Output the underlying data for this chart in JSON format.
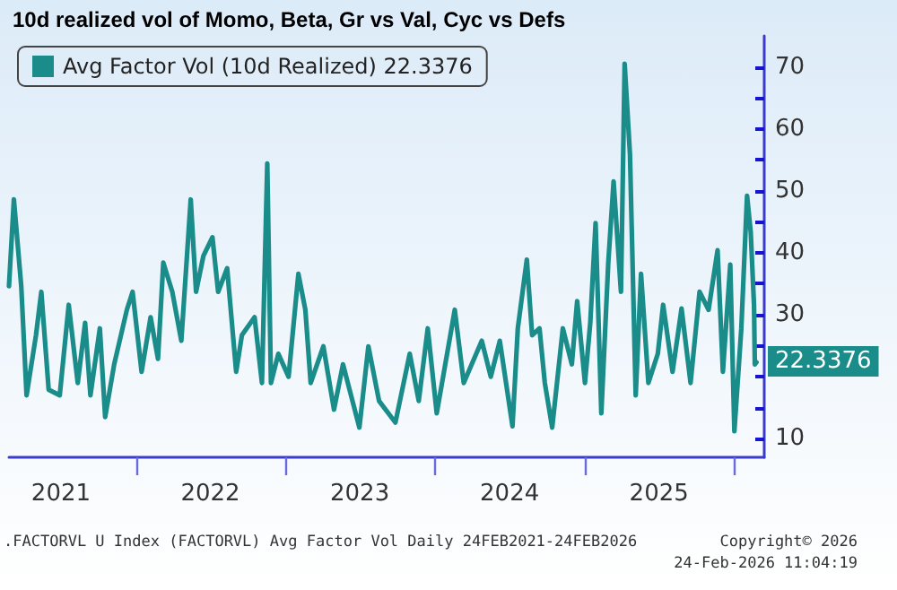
{
  "chart_data": {
    "type": "line",
    "title": "10d realized vol of Momo, Beta, Gr vs Val, Cyc vs Defs",
    "x": [
      "2021-02-24",
      "2021-03-08",
      "2021-03-26",
      "2021-04-08",
      "2021-05-01",
      "2021-05-14",
      "2021-06-01",
      "2021-06-28",
      "2021-07-20",
      "2021-08-11",
      "2021-08-29",
      "2021-09-11",
      "2021-10-04",
      "2021-10-17",
      "2021-11-08",
      "2021-12-09",
      "2021-12-23",
      "2022-01-14",
      "2022-02-05",
      "2022-02-23",
      "2022-03-08",
      "2022-03-30",
      "2022-04-21",
      "2022-05-14",
      "2022-05-27",
      "2022-06-14",
      "2022-07-06",
      "2022-07-20",
      "2022-08-11",
      "2022-09-02",
      "2022-09-16",
      "2022-10-17",
      "2022-11-04",
      "2022-11-17",
      "2022-11-26",
      "2022-12-14",
      "2023-01-08",
      "2023-02-01",
      "2023-02-18",
      "2023-03-03",
      "2023-04-03",
      "2023-04-29",
      "2023-05-21",
      "2023-06-30",
      "2023-07-22",
      "2023-08-17",
      "2023-09-26",
      "2023-10-31",
      "2023-11-22",
      "2023-12-14",
      "2024-01-05",
      "2024-02-18",
      "2024-03-11",
      "2024-04-24",
      "2024-05-16",
      "2024-06-07",
      "2024-07-08",
      "2024-07-21",
      "2024-08-12",
      "2024-08-25",
      "2024-09-12",
      "2024-09-25",
      "2024-10-13",
      "2024-11-08",
      "2024-11-30",
      "2024-12-13",
      "2025-01-01",
      "2025-01-14",
      "2025-01-27",
      "2025-02-10",
      "2025-02-27",
      "2025-03-12",
      "2025-03-30",
      "2025-04-08",
      "2025-04-21",
      "2025-05-05",
      "2025-05-18",
      "2025-06-05",
      "2025-06-28",
      "2025-07-11",
      "2025-08-03",
      "2025-08-25",
      "2025-09-16",
      "2025-10-08",
      "2025-10-30",
      "2025-11-21",
      "2025-12-04",
      "2025-12-22",
      "2026-01-01",
      "2026-01-18",
      "2026-02-01",
      "2026-02-10",
      "2026-02-18",
      "2026-02-20",
      "2026-02-24"
    ],
    "series": [
      {
        "name": "Avg Factor Vol (10d Realized) 22.3376",
        "color": "#1a8c8a",
        "values": [
          34.6,
          48.6,
          34.6,
          17,
          26.7,
          33.7,
          17.9,
          17,
          31.6,
          19,
          28.7,
          17,
          27.8,
          13.5,
          22,
          30.8,
          33.7,
          20.8,
          29.6,
          22.9,
          38.4,
          33.7,
          25.8,
          48.6,
          33.7,
          39.5,
          42.5,
          33.7,
          37.5,
          20.8,
          26.7,
          29.6,
          19,
          54.4,
          19,
          23.7,
          20,
          36.6,
          30.8,
          19,
          24.9,
          14.7,
          22,
          11.8,
          24.9,
          16.1,
          12.6,
          23.7,
          16.1,
          27.8,
          14.1,
          30.8,
          19,
          25.8,
          20,
          25.8,
          12,
          27.8,
          38.9,
          26.7,
          27.8,
          19,
          11.8,
          27.8,
          22,
          32.2,
          19,
          28.7,
          44.8,
          14.1,
          38.4,
          51.5,
          33.7,
          70.5,
          55.9,
          17,
          36.6,
          19,
          23.7,
          31.6,
          20.8,
          31,
          19,
          33.7,
          30.8,
          40.4,
          20.8,
          38.1,
          11.2,
          27.8,
          49.2,
          43.3,
          31.6,
          22,
          22.3376
        ]
      }
    ],
    "xlim": [
      "2021-02-24",
      "2026-03-15"
    ],
    "xticks": [
      {
        "value": "2021-07-01",
        "label": "2021"
      },
      {
        "value": "2022-01-01",
        "label": null
      },
      {
        "value": "2022-07-01",
        "label": "2022"
      },
      {
        "value": "2023-01-01",
        "label": null
      },
      {
        "value": "2023-07-01",
        "label": "2023"
      },
      {
        "value": "2024-01-01",
        "label": null
      },
      {
        "value": "2024-07-01",
        "label": "2024"
      },
      {
        "value": "2025-01-01",
        "label": null
      },
      {
        "value": "2025-07-01",
        "label": "2025"
      },
      {
        "value": "2026-01-01",
        "label": null
      }
    ],
    "ylim": [
      7,
      75
    ],
    "yticks": [
      10,
      {
        "value": 15,
        "label": null
      },
      {
        "value": 20,
        "label": null
      },
      {
        "value": 25,
        "label": null
      },
      30,
      {
        "value": 35,
        "label": null
      },
      40,
      {
        "value": 45,
        "label": null
      },
      50,
      {
        "value": 55,
        "label": null
      },
      60,
      {
        "value": 65,
        "label": null
      },
      70
    ],
    "grid": false,
    "legend": "top left",
    "marker": "none",
    "line_style": "solid",
    "annotations": [
      {
        "text": "22.3376",
        "x": "2026-02-24",
        "y": 22.3376
      },
      ".FACTORVL U Index (FACTORVL) Avg Factor Vol Daily 24FEB2021-24FEB2026",
      "Copyright© 2026",
      "24-Feb-2026 11:04:19"
    ]
  }
}
